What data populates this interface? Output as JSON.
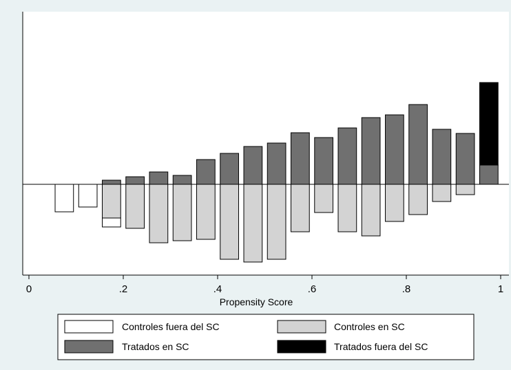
{
  "chart_data": {
    "type": "bar",
    "subtype": "propensity score histogram (mirrored)",
    "xlabel": "Propensity Score",
    "ylabel": "",
    "title": "",
    "xlim": [
      0,
      1
    ],
    "xticks": [
      0,
      0.2,
      0.4,
      0.6,
      0.8,
      1
    ],
    "xtick_labels": [
      "0",
      ".2",
      ".4",
      ".6",
      ".8",
      "1"
    ],
    "grid": false,
    "legend_position": "bottom",
    "legend": [
      {
        "label": "Controles fuera del SC",
        "color": "#ffffff"
      },
      {
        "label": "Controles en SC",
        "color": "#d3d3d3"
      },
      {
        "label": "Tratados en SC",
        "color": "#707070"
      },
      {
        "label": "Tratados fuera del SC",
        "color": "#000000"
      }
    ],
    "bins": [
      {
        "center": 0.075,
        "treated_in": 0,
        "treated_out": 0,
        "control_in": 0,
        "control_out": 40
      },
      {
        "center": 0.125,
        "treated_in": 0,
        "treated_out": 0,
        "control_in": 0,
        "control_out": 33
      },
      {
        "center": 0.175,
        "treated_in": 6,
        "treated_out": 0,
        "control_in": 49,
        "control_out": 13
      },
      {
        "center": 0.225,
        "treated_in": 11,
        "treated_out": 0,
        "control_in": 64,
        "control_out": 0
      },
      {
        "center": 0.275,
        "treated_in": 18,
        "treated_out": 0,
        "control_in": 85,
        "control_out": 0
      },
      {
        "center": 0.325,
        "treated_in": 13,
        "treated_out": 0,
        "control_in": 82,
        "control_out": 0
      },
      {
        "center": 0.375,
        "treated_in": 36,
        "treated_out": 0,
        "control_in": 80,
        "control_out": 0
      },
      {
        "center": 0.425,
        "treated_in": 45,
        "treated_out": 0,
        "control_in": 109,
        "control_out": 0
      },
      {
        "center": 0.475,
        "treated_in": 55,
        "treated_out": 0,
        "control_in": 113,
        "control_out": 0
      },
      {
        "center": 0.525,
        "treated_in": 60,
        "treated_out": 0,
        "control_in": 109,
        "control_out": 0
      },
      {
        "center": 0.575,
        "treated_in": 75,
        "treated_out": 0,
        "control_in": 69,
        "control_out": 0
      },
      {
        "center": 0.625,
        "treated_in": 68,
        "treated_out": 0,
        "control_in": 41,
        "control_out": 0
      },
      {
        "center": 0.675,
        "treated_in": 82,
        "treated_out": 0,
        "control_in": 69,
        "control_out": 0
      },
      {
        "center": 0.725,
        "treated_in": 97,
        "treated_out": 0,
        "control_in": 75,
        "control_out": 0
      },
      {
        "center": 0.775,
        "treated_in": 101,
        "treated_out": 0,
        "control_in": 54,
        "control_out": 0
      },
      {
        "center": 0.825,
        "treated_in": 116,
        "treated_out": 0,
        "control_in": 44,
        "control_out": 0
      },
      {
        "center": 0.875,
        "treated_in": 80,
        "treated_out": 0,
        "control_in": 25,
        "control_out": 0
      },
      {
        "center": 0.925,
        "treated_in": 74,
        "treated_out": 0,
        "control_in": 15,
        "control_out": 0
      },
      {
        "center": 0.975,
        "treated_in": 28,
        "treated_out": 120,
        "control_in": 0,
        "control_out": 0
      }
    ],
    "bin_width": 0.05,
    "ylim": [
      -128,
      150
    ]
  },
  "style": {
    "colors": {
      "background": "#eaf2f3",
      "plot_bg": "#ffffff",
      "control_out": "#ffffff",
      "control_in": "#d3d3d3",
      "treated_in": "#707070",
      "treated_out": "#000000",
      "outline": "#000000"
    }
  }
}
